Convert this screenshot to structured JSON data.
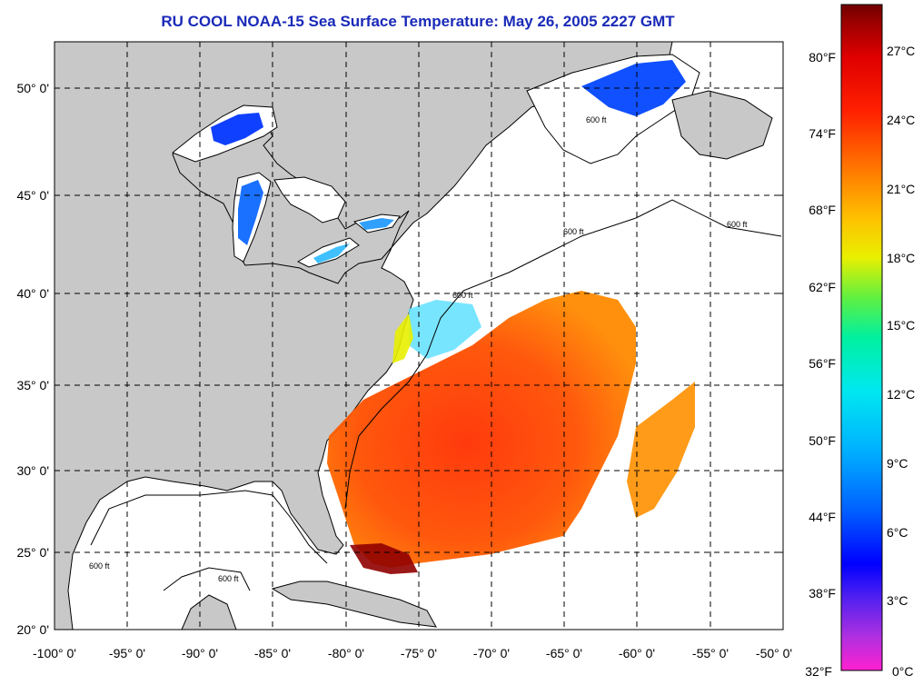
{
  "title": "RU COOL  NOAA-15  Sea Surface Temperature:  May 26, 2005 2227 GMT",
  "map": {
    "lon_labels": [
      "-100° 0'",
      "-95° 0'",
      "-90° 0'",
      "-85° 0'",
      "-80° 0'",
      "-75° 0'",
      "-70° 0'",
      "-65° 0'",
      "-60° 0'",
      "-55° 0'",
      "-50° 0'"
    ],
    "lat_labels": [
      "50° 0'",
      "45° 0'",
      "40° 0'",
      "35° 0'",
      "30° 0'",
      "25° 0'",
      "20° 0'"
    ],
    "lon_range": [
      -100,
      -50
    ],
    "lat_range": [
      20,
      52.5
    ],
    "isobath_label": "600 ft",
    "colors": {
      "land": "#c8c8c8",
      "ocean_missing": "#ffffff",
      "grid": "#000000"
    }
  },
  "colorbar": {
    "fahrenheit_labels": [
      "80°F",
      "74°F",
      "68°F",
      "62°F",
      "56°F",
      "50°F",
      "44°F",
      "38°F",
      "32°F"
    ],
    "celsius_labels": [
      "27°C",
      "24°C",
      "21°C",
      "18°C",
      "15°C",
      "12°C",
      "9°C",
      "6°C",
      "3°C",
      "0°C"
    ],
    "celsius_range": [
      0,
      28.5
    ],
    "gradient_stops": [
      "#ff20d0",
      "#b030e0",
      "#5020f0",
      "#0000ff",
      "#0060ff",
      "#00b0ff",
      "#00e8f0",
      "#00f0a0",
      "#60f040",
      "#e8f000",
      "#ffc000",
      "#ff7000",
      "#ff2000",
      "#e00000",
      "#a00000",
      "#700000"
    ]
  }
}
